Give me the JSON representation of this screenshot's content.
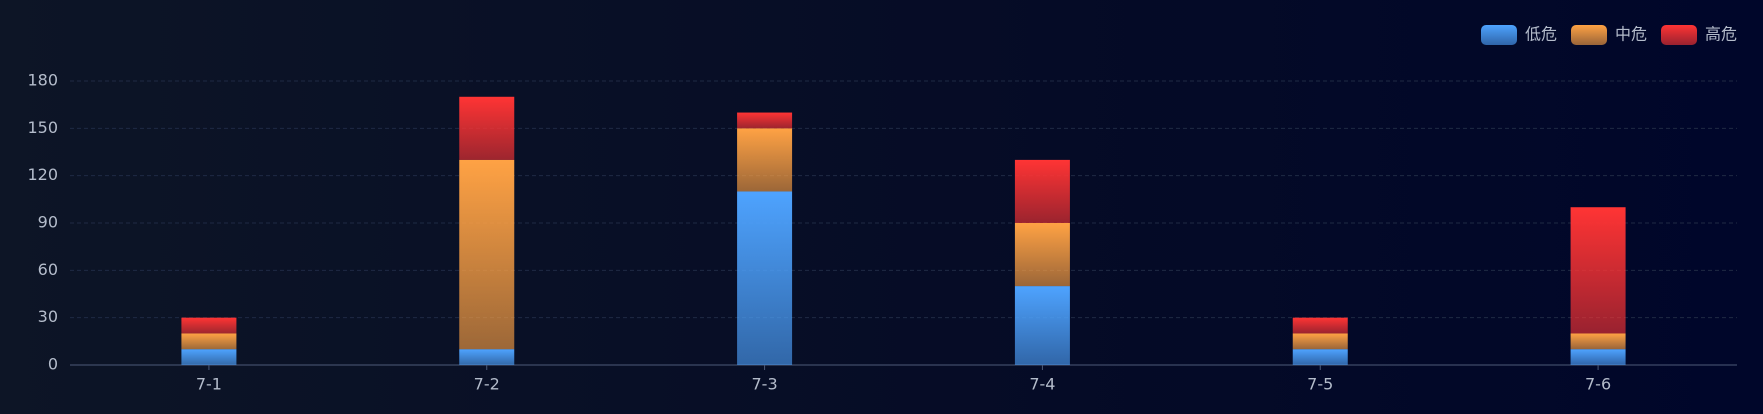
{
  "chart_data": {
    "type": "stacked-bar",
    "categories": [
      "7-1",
      "7-2",
      "7-3",
      "7-4",
      "7-5",
      "7-6"
    ],
    "series": [
      {
        "name": "低危",
        "color": "#4ea3ff",
        "values": [
          10,
          10,
          110,
          50,
          10,
          10
        ]
      },
      {
        "name": "中危",
        "color": "#ffa244",
        "values": [
          10,
          120,
          40,
          40,
          10,
          10
        ]
      },
      {
        "name": "高危",
        "color": "#ff3434",
        "values": [
          10,
          40,
          10,
          40,
          10,
          80
        ]
      }
    ],
    "ylim": [
      0,
      180
    ],
    "yticks": [
      0,
      30,
      60,
      90,
      120,
      150,
      180
    ],
    "grid": true,
    "legend": "top-right"
  }
}
